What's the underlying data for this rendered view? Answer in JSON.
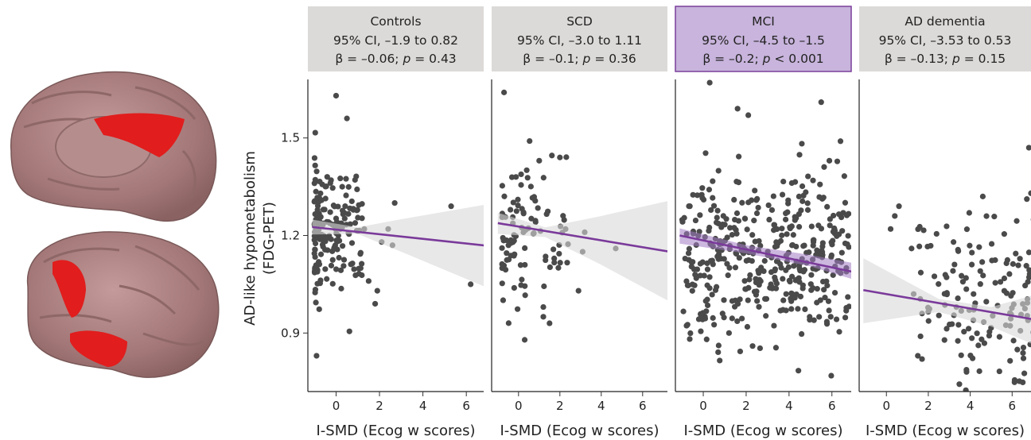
{
  "figure": {
    "ylabel_line1": "AD-like hypometabolism",
    "ylabel_line2": "(FDG-PET)",
    "brain_images": [
      "medial brain surface",
      "lateral brain surface"
    ]
  },
  "chart_data": {
    "type": "scatter",
    "ylabel": "AD-like hypometabolism (FDG-PET)",
    "y_ticks": [
      0.9,
      1.2,
      1.5
    ],
    "ylim": [
      0.72,
      1.68
    ],
    "x_ticks": [
      0,
      2,
      4,
      6
    ],
    "colors": {
      "strip_default": "#dcdad8",
      "strip_highlight": "#c8b4dc",
      "strip_highlight_border": "#7a3f9a",
      "points": "#4a4a4a",
      "line": "#7a3a9a",
      "band_default": "#d9d9d9",
      "band_highlight": "#a27cc4"
    },
    "panels": [
      {
        "label": "Controls",
        "ci_text": "95% CI, –1.9 to 0.82",
        "beta_text": "β = –0.06; p = 0.43",
        "beta_prefix": "β = –0.06; ",
        "p_prefix": "p",
        "p_suffix": " = 0.43",
        "xlabel": "I-SMD (Ecog w scores)",
        "xlim": [
          -1.3,
          6.8
        ],
        "highlight": false,
        "fit": {
          "x0": -1.1,
          "y0": 1.226,
          "x1": 7.3,
          "y1": 1.166
        },
        "band": [
          [
            -1.1,
            1.203,
            1.249
          ],
          [
            1.0,
            1.205,
            1.225
          ],
          [
            3.0,
            1.15,
            1.25
          ],
          [
            7.3,
            1.03,
            1.3
          ]
        ],
        "n_points": 180,
        "cluster": {
          "x": [
            -1.0,
            1.2
          ],
          "mean_y": 1.22,
          "sd_y": 0.09
        },
        "extra_points": [
          [
            -0.9,
            0.83
          ],
          [
            0.0,
            1.63
          ],
          [
            0.5,
            1.56
          ],
          [
            1.5,
            1.06
          ],
          [
            1.9,
            1.03
          ],
          [
            1.8,
            0.99
          ],
          [
            2.1,
            1.18
          ],
          [
            2.4,
            1.22
          ],
          [
            2.6,
            1.17
          ],
          [
            2.7,
            1.3
          ],
          [
            5.3,
            1.29
          ],
          [
            6.2,
            1.05
          ],
          [
            1.3,
            1.22
          ]
        ]
      },
      {
        "label": "SCD",
        "ci_text": "95% CI, –3.0 to 1.11",
        "beta_text": "β = –0.1; p = 0.36",
        "beta_prefix": "β = –0.1; ",
        "p_prefix": "p",
        "p_suffix": " = 0.36",
        "xlabel": "I-SMD (Ecog w scores)",
        "xlim": [
          -1.3,
          7.2
        ],
        "highlight": false,
        "fit": {
          "x0": -1.0,
          "y0": 1.238,
          "x1": 7.5,
          "y1": 1.148
        },
        "band": [
          [
            -1.0,
            1.205,
            1.27
          ],
          [
            1.3,
            1.195,
            1.225
          ],
          [
            4.0,
            1.11,
            1.26
          ],
          [
            7.5,
            0.99,
            1.31
          ]
        ],
        "n_points": 95,
        "cluster": {
          "x": [
            -0.8,
            2.4
          ],
          "mean_y": 1.21,
          "sd_y": 0.11
        },
        "extra_points": [
          [
            -0.7,
            1.64
          ],
          [
            1.2,
            0.95
          ],
          [
            1.5,
            0.93
          ],
          [
            1.2,
            0.98
          ],
          [
            2.9,
            1.03
          ],
          [
            3.2,
            1.21
          ],
          [
            3.1,
            1.15
          ],
          [
            4.7,
            1.16
          ],
          [
            2.0,
            1.44
          ],
          [
            1.0,
            1.43
          ]
        ]
      },
      {
        "label": "MCI",
        "ci_text": "95% CI, –4.5 to –1.5",
        "beta_text": "β = –0.2; p < 0.001",
        "beta_prefix": "β = –0.2; ",
        "p_prefix": "p",
        "p_suffix": " < 0.001",
        "xlabel": "I-SMD (Ecog w scores)",
        "xlim": [
          -1.3,
          6.9
        ],
        "highlight": true,
        "fit": {
          "x0": -1.1,
          "y0": 1.2,
          "x1": 7.0,
          "y1": 1.088
        },
        "band": [
          [
            -1.1,
            1.175,
            1.222
          ],
          [
            2.0,
            1.145,
            1.17
          ],
          [
            5.0,
            1.105,
            1.14
          ],
          [
            7.0,
            1.065,
            1.115
          ]
        ],
        "n_points": 420,
        "cluster": {
          "x": [
            -1.0,
            6.8
          ],
          "mean_y": 1.14,
          "sd_y": 0.13
        },
        "extra_points": [
          [
            0.3,
            1.67
          ],
          [
            1.6,
            1.59
          ],
          [
            2.1,
            1.57
          ],
          [
            5.5,
            1.61
          ],
          [
            6.4,
            1.49
          ],
          [
            0.9,
            0.96
          ],
          [
            2.3,
            0.86
          ],
          [
            1.2,
            0.9
          ]
        ]
      },
      {
        "label": "AD dementia",
        "ci_text": "95% CI, –3.53 to 0.53",
        "beta_text": "β = –0.13; p = 0.15",
        "beta_prefix": "β = –0.13; ",
        "p_prefix": "p",
        "p_suffix": " = 0.15",
        "xlabel": "I-SMD (Ecog w scores)",
        "xlim": [
          -1.3,
          6.9
        ],
        "highlight": false,
        "fit": {
          "x0": -1.1,
          "y0": 1.032,
          "x1": 7.2,
          "y1": 0.94
        },
        "band": [
          [
            -1.1,
            0.93,
            1.13
          ],
          [
            2.5,
            0.965,
            1.005
          ],
          [
            5.0,
            0.92,
            0.98
          ],
          [
            7.2,
            0.86,
            1.02
          ]
        ],
        "n_points": 150,
        "cluster": {
          "x": [
            1.5,
            7.2
          ],
          "mean_y": 0.98,
          "sd_y": 0.14
        },
        "extra_points": [
          [
            0.2,
            1.22
          ],
          [
            0.4,
            1.26
          ],
          [
            0.6,
            1.29
          ],
          [
            1.2,
            1.16
          ],
          [
            1.3,
            1.02
          ],
          [
            1.7,
            0.96
          ],
          [
            1.5,
            0.83
          ],
          [
            1.7,
            0.82
          ],
          [
            4.6,
            1.32
          ],
          [
            6.8,
            1.47
          ],
          [
            6.9,
            1.33
          ],
          [
            5.3,
            0.68
          ],
          [
            6.4,
            0.68
          ],
          [
            6.6,
            0.66
          ]
        ]
      }
    ]
  }
}
